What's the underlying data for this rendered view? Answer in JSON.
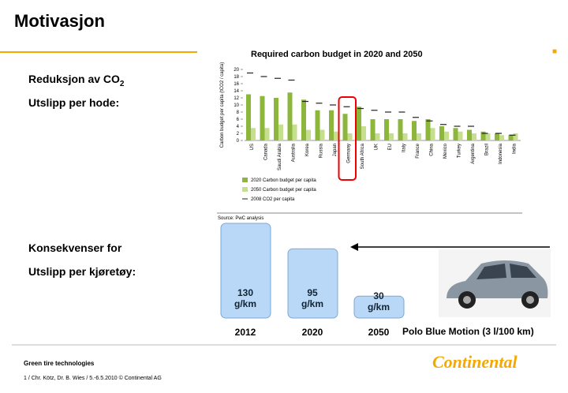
{
  "slide": {
    "title": "Motivasjon",
    "section1": {
      "text": "Reduksjon av CO",
      "subscript": "2"
    },
    "section1_line2": "Utslipp per hode:",
    "section2": "Konsekvenser for",
    "section2_line2": "Utslipp per kjøretøy:",
    "car_label": "Polo Blue Motion (3 l/100 km)",
    "footer_title": "Green tire technologies",
    "footer_note": "1 / Chr. Kötz, Dr. B. Wies /  5.-6.5.2010   © Continental AG",
    "logo": "Continental"
  },
  "chart_data": [
    {
      "type": "bar",
      "title": "Required carbon budget in 2020 and 2050",
      "y_label": "Carbon budget per capita (tCO2 / capita)",
      "source": "Source: PwC analysis",
      "highlight": "Germany",
      "categories": [
        "US",
        "Canada",
        "Saudi Arabia",
        "Australia",
        "Korea",
        "Russia",
        "Japan",
        "Germany",
        "South Africa",
        "UK",
        "EU",
        "Italy",
        "France",
        "China",
        "Mexico",
        "Turkey",
        "Argentina",
        "Brazil",
        "Indonesia",
        "India"
      ],
      "series": [
        {
          "name": "2020 Carbon budget per capita",
          "color": "#8db63c",
          "values": [
            13,
            12.5,
            12,
            13.5,
            11.5,
            8.5,
            8.5,
            7.5,
            9.5,
            6,
            6,
            6,
            5.5,
            6,
            4,
            3.5,
            3,
            2.5,
            2,
            1.5
          ]
        },
        {
          "name": "2050 Carbon budget per capita",
          "color": "#c6df8e",
          "values": [
            3.5,
            3.5,
            4.5,
            4.5,
            3,
            3,
            2.5,
            2,
            4,
            2,
            2,
            2,
            2,
            3.5,
            2.5,
            2.5,
            2,
            2,
            1.5,
            2
          ]
        },
        {
          "name": "2008 CO2 per capita",
          "color": "#222222",
          "marker": "dash",
          "values": [
            19,
            18,
            17.5,
            17,
            11,
            10.5,
            10,
            9.5,
            9,
            8.5,
            8,
            8,
            6.5,
            5.5,
            4.5,
            4,
            4,
            2,
            2,
            1.5
          ]
        }
      ],
      "ylim": [
        0,
        20
      ],
      "yticks": [
        0,
        2,
        4,
        6,
        8,
        10,
        12,
        14,
        16,
        18,
        20
      ]
    },
    {
      "type": "bar",
      "categories": [
        "2012",
        "2020",
        "2050"
      ],
      "values": [
        130,
        95,
        30
      ],
      "value_labels": [
        "130 g/km",
        "95 g/km",
        "30 g/km"
      ],
      "color": "#b9d8f7",
      "ylim": [
        0,
        130
      ]
    }
  ]
}
